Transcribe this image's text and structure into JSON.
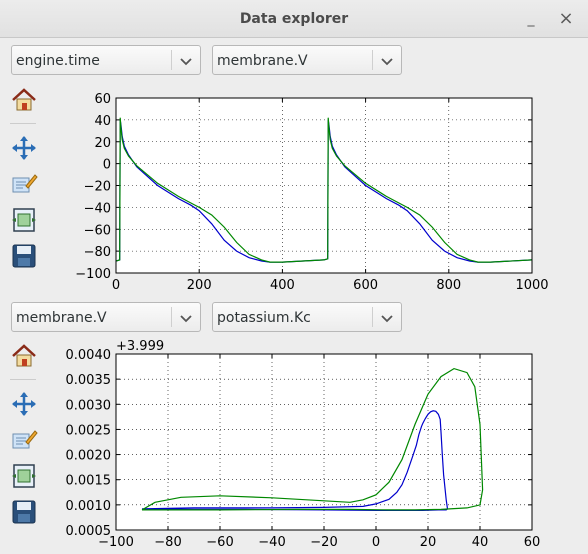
{
  "window": {
    "title": "Data explorer",
    "minimize_glyph": "_",
    "close_glyph": "×"
  },
  "panel1": {
    "x_select": "engine.time",
    "y_select": "membrane.V"
  },
  "panel2": {
    "x_select": "membrane.V",
    "y_select": "potassium.Kc"
  },
  "toolbar_icons": [
    "home-icon",
    "pan-icon",
    "edit-axis-icon",
    "subplots-icon",
    "save-icon"
  ],
  "colors": {
    "series_blue": "#0000cc",
    "series_green": "#008800"
  },
  "chart_data": [
    {
      "type": "line",
      "title": "",
      "xlabel": "",
      "ylabel": "",
      "xlim": [
        0,
        1000
      ],
      "ylim": [
        -100,
        60
      ],
      "xticks": [
        "0",
        "200",
        "400",
        "600",
        "800",
        "1000"
      ],
      "yticks": [
        "−100",
        "−80",
        "−60",
        "−40",
        "−20",
        "0",
        "20",
        "40",
        "60"
      ],
      "grid": true,
      "series": [
        {
          "color": "#0000cc",
          "x": [
            0,
            9,
            10,
            12,
            15,
            20,
            30,
            50,
            100,
            150,
            180,
            200,
            230,
            260,
            290,
            320,
            350,
            370,
            400,
            500,
            509,
            510,
            512,
            515,
            520,
            530,
            550,
            600,
            650,
            680,
            700,
            730,
            760,
            790,
            820,
            850,
            870,
            900,
            1000
          ],
          "y": [
            -89,
            -88,
            40,
            35,
            25,
            16,
            8,
            -3,
            -20,
            -32,
            -38,
            -43,
            -55,
            -70,
            -80,
            -86,
            -89,
            -90,
            -90,
            -88,
            -87,
            40,
            35,
            25,
            16,
            8,
            -3,
            -20,
            -32,
            -38,
            -43,
            -55,
            -70,
            -80,
            -86,
            -89,
            -90,
            -90,
            -88
          ]
        },
        {
          "color": "#008800",
          "x": [
            0,
            9,
            10,
            12,
            15,
            20,
            30,
            50,
            100,
            150,
            180,
            200,
            230,
            260,
            290,
            320,
            350,
            370,
            400,
            500,
            509,
            510,
            512,
            515,
            520,
            530,
            550,
            600,
            650,
            680,
            700,
            730,
            760,
            790,
            820,
            850,
            870,
            900,
            1000
          ],
          "y": [
            -89,
            -88,
            42,
            32,
            22,
            14,
            7,
            -2,
            -18,
            -30,
            -36,
            -40,
            -47,
            -58,
            -72,
            -83,
            -88,
            -90,
            -90,
            -88,
            -87,
            42,
            32,
            22,
            14,
            7,
            -2,
            -18,
            -30,
            -36,
            -40,
            -47,
            -58,
            -72,
            -83,
            -88,
            -90,
            -90,
            -88
          ]
        }
      ]
    },
    {
      "type": "line",
      "title": "",
      "xlabel": "",
      "ylabel": "",
      "offset_label": "+3.999",
      "xlim": [
        -100,
        60
      ],
      "ylim": [
        0.0005,
        0.004
      ],
      "xticks": [
        "−100",
        "−80",
        "−60",
        "−40",
        "−20",
        "0",
        "20",
        "40",
        "60"
      ],
      "yticks": [
        "0.0005",
        "0.0010",
        "0.0015",
        "0.0020",
        "0.0025",
        "0.0030",
        "0.0035",
        "0.0040"
      ],
      "grid": true,
      "series": [
        {
          "color": "#0000cc",
          "x": [
            -90,
            -70,
            -40,
            -20,
            -5,
            0,
            5,
            8,
            10,
            12,
            14,
            15.5,
            16.5,
            17.5,
            18,
            19,
            20,
            21,
            22,
            23,
            24,
            24.7,
            25,
            25.5,
            26,
            27,
            27.5,
            27,
            24,
            18,
            12,
            5,
            0,
            -20,
            -50,
            -80,
            -90
          ],
          "y": [
            0.00092,
            0.00094,
            0.00094,
            0.00095,
            0.00097,
            0.00102,
            0.00111,
            0.00125,
            0.0014,
            0.00165,
            0.00195,
            0.00218,
            0.0024,
            0.00256,
            0.00262,
            0.00272,
            0.0028,
            0.00285,
            0.00287,
            0.00286,
            0.0028,
            0.0027,
            0.00245,
            0.002,
            0.0016,
            0.0011,
            0.00092,
            0.0009,
            0.0009,
            0.00089,
            0.00089,
            0.00089,
            0.00089,
            0.0009,
            0.00091,
            0.00091,
            0.00092
          ]
        },
        {
          "color": "#008800",
          "x": [
            -90,
            -85,
            -75,
            -60,
            -40,
            -20,
            -10,
            -5,
            0,
            5,
            10,
            15,
            20,
            25,
            30,
            35,
            38,
            40,
            41,
            40,
            35,
            25,
            15,
            5,
            -10,
            -30,
            -60,
            -90
          ],
          "y": [
            0.0009,
            0.00105,
            0.00115,
            0.00118,
            0.00114,
            0.00108,
            0.00105,
            0.0011,
            0.0012,
            0.00145,
            0.0019,
            0.0026,
            0.0032,
            0.00355,
            0.00371,
            0.00363,
            0.00335,
            0.0026,
            0.0013,
            0.001,
            0.00094,
            0.00091,
            0.0009,
            0.0009,
            0.00091,
            0.00091,
            0.0009,
            0.0009
          ]
        }
      ]
    }
  ]
}
